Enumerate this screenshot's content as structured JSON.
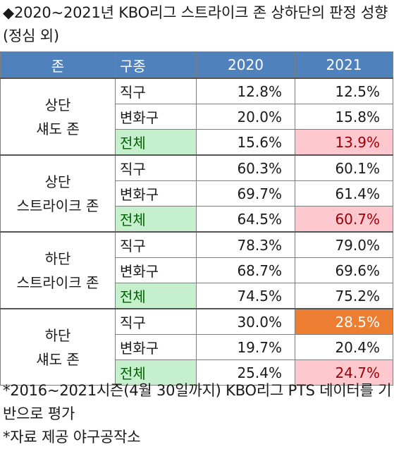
{
  "title": "◆2020~2021년 KBO리그 스트라이크 존 상하단의 판정 성향(정심 외)",
  "headers": {
    "zone": "존",
    "kind": "구종",
    "y2020": "2020",
    "y2021": "2021"
  },
  "groups": [
    {
      "zone": [
        "상단",
        "섀도 존"
      ],
      "rows": [
        {
          "kind": "직구",
          "v2020": "12.8%",
          "v2021": "12.5%"
        },
        {
          "kind": "변화구",
          "v2020": "20.0%",
          "v2021": "15.8%"
        },
        {
          "kind": "전체",
          "v2020": "15.6%",
          "v2021": "13.9%"
        }
      ]
    },
    {
      "zone": [
        "상단",
        "스트라이크 존"
      ],
      "rows": [
        {
          "kind": "직구",
          "v2020": "60.3%",
          "v2021": "60.1%"
        },
        {
          "kind": "변화구",
          "v2020": "69.7%",
          "v2021": "61.4%"
        },
        {
          "kind": "전체",
          "v2020": "64.5%",
          "v2021": "60.7%"
        }
      ]
    },
    {
      "zone": [
        "하단",
        "스트라이크 존"
      ],
      "rows": [
        {
          "kind": "직구",
          "v2020": "78.3%",
          "v2021": "79.0%"
        },
        {
          "kind": "변화구",
          "v2020": "68.7%",
          "v2021": "69.6%"
        },
        {
          "kind": "전체",
          "v2020": "74.5%",
          "v2021": "75.2%"
        }
      ]
    },
    {
      "zone": [
        "하단",
        "섀도 존"
      ],
      "rows": [
        {
          "kind": "직구",
          "v2020": "30.0%",
          "v2021": "28.5%"
        },
        {
          "kind": "변화구",
          "v2020": "19.7%",
          "v2021": "20.4%"
        },
        {
          "kind": "전체",
          "v2020": "25.4%",
          "v2021": "24.7%"
        }
      ]
    }
  ],
  "notes": [
    "*2016~2021시즌(4월 30일까지) KBO리그 PTS 데이터를 기반으로 평가",
    "*자료 제공 야구공작소"
  ],
  "colors": {
    "header_bg": "#4f81bd",
    "total_label_bg": "#c6efce",
    "pink_highlight_bg": "#ffc7ce",
    "orange_highlight_bg": "#ed7d31"
  }
}
